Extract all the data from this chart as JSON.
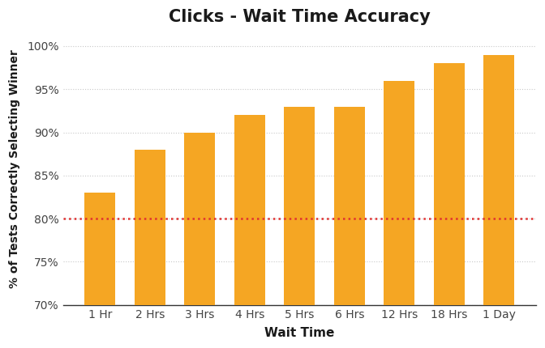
{
  "title": "Clicks - Wait Time Accuracy",
  "xlabel": "Wait Time",
  "ylabel": "% of Tests Correctly Selecting Winner",
  "categories": [
    "1 Hr",
    "2 Hrs",
    "3 Hrs",
    "4 Hrs",
    "5 Hrs",
    "6 Hrs",
    "12 Hrs",
    "18 Hrs",
    "1 Day"
  ],
  "values": [
    83,
    88,
    90,
    92,
    93,
    93,
    96,
    98,
    99
  ],
  "bar_color": "#F5A623",
  "label_color": "#F5A623",
  "reference_line_y": 80,
  "reference_line_color": "#e03030",
  "ylim": [
    70,
    101.5
  ],
  "yticks": [
    70,
    75,
    80,
    85,
    90,
    95,
    100
  ],
  "ytick_labels": [
    "70%",
    "75%",
    "80%",
    "85%",
    "90%",
    "95%",
    "100%"
  ],
  "grid_color": "#c8c8c8",
  "background_color": "#ffffff",
  "title_fontsize": 15,
  "label_fontsize": 11,
  "tick_fontsize": 10,
  "bar_label_fontsize": 9,
  "axis_text_color": "#444444"
}
